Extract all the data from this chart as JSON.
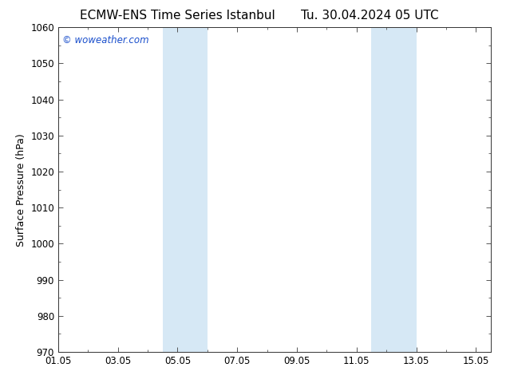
{
  "title_left": "ECMW-ENS Time Series Istanbul",
  "title_right": "Tu. 30.04.2024 05 UTC",
  "ylabel": "Surface Pressure (hPa)",
  "ylim": [
    970,
    1060
  ],
  "yticks": [
    970,
    980,
    990,
    1000,
    1010,
    1020,
    1030,
    1040,
    1050,
    1060
  ],
  "xlim_start": 0.0,
  "xlim_end": 14.5,
  "xtick_positions": [
    0,
    2,
    4,
    6,
    8,
    10,
    12,
    14
  ],
  "xtick_labels": [
    "01.05",
    "03.05",
    "05.05",
    "07.05",
    "09.05",
    "11.05",
    "13.05",
    "15.05"
  ],
  "shaded_bands": [
    {
      "x_start": 3.5,
      "x_end": 5.0
    },
    {
      "x_start": 10.5,
      "x_end": 12.0
    }
  ],
  "shade_color": "#d6e8f5",
  "background_color": "#ffffff",
  "plot_bg_color": "#ffffff",
  "watermark_text": "© woweather.com",
  "watermark_color": "#1a4fcc",
  "title_fontsize": 11,
  "axis_label_fontsize": 9,
  "tick_fontsize": 8.5
}
